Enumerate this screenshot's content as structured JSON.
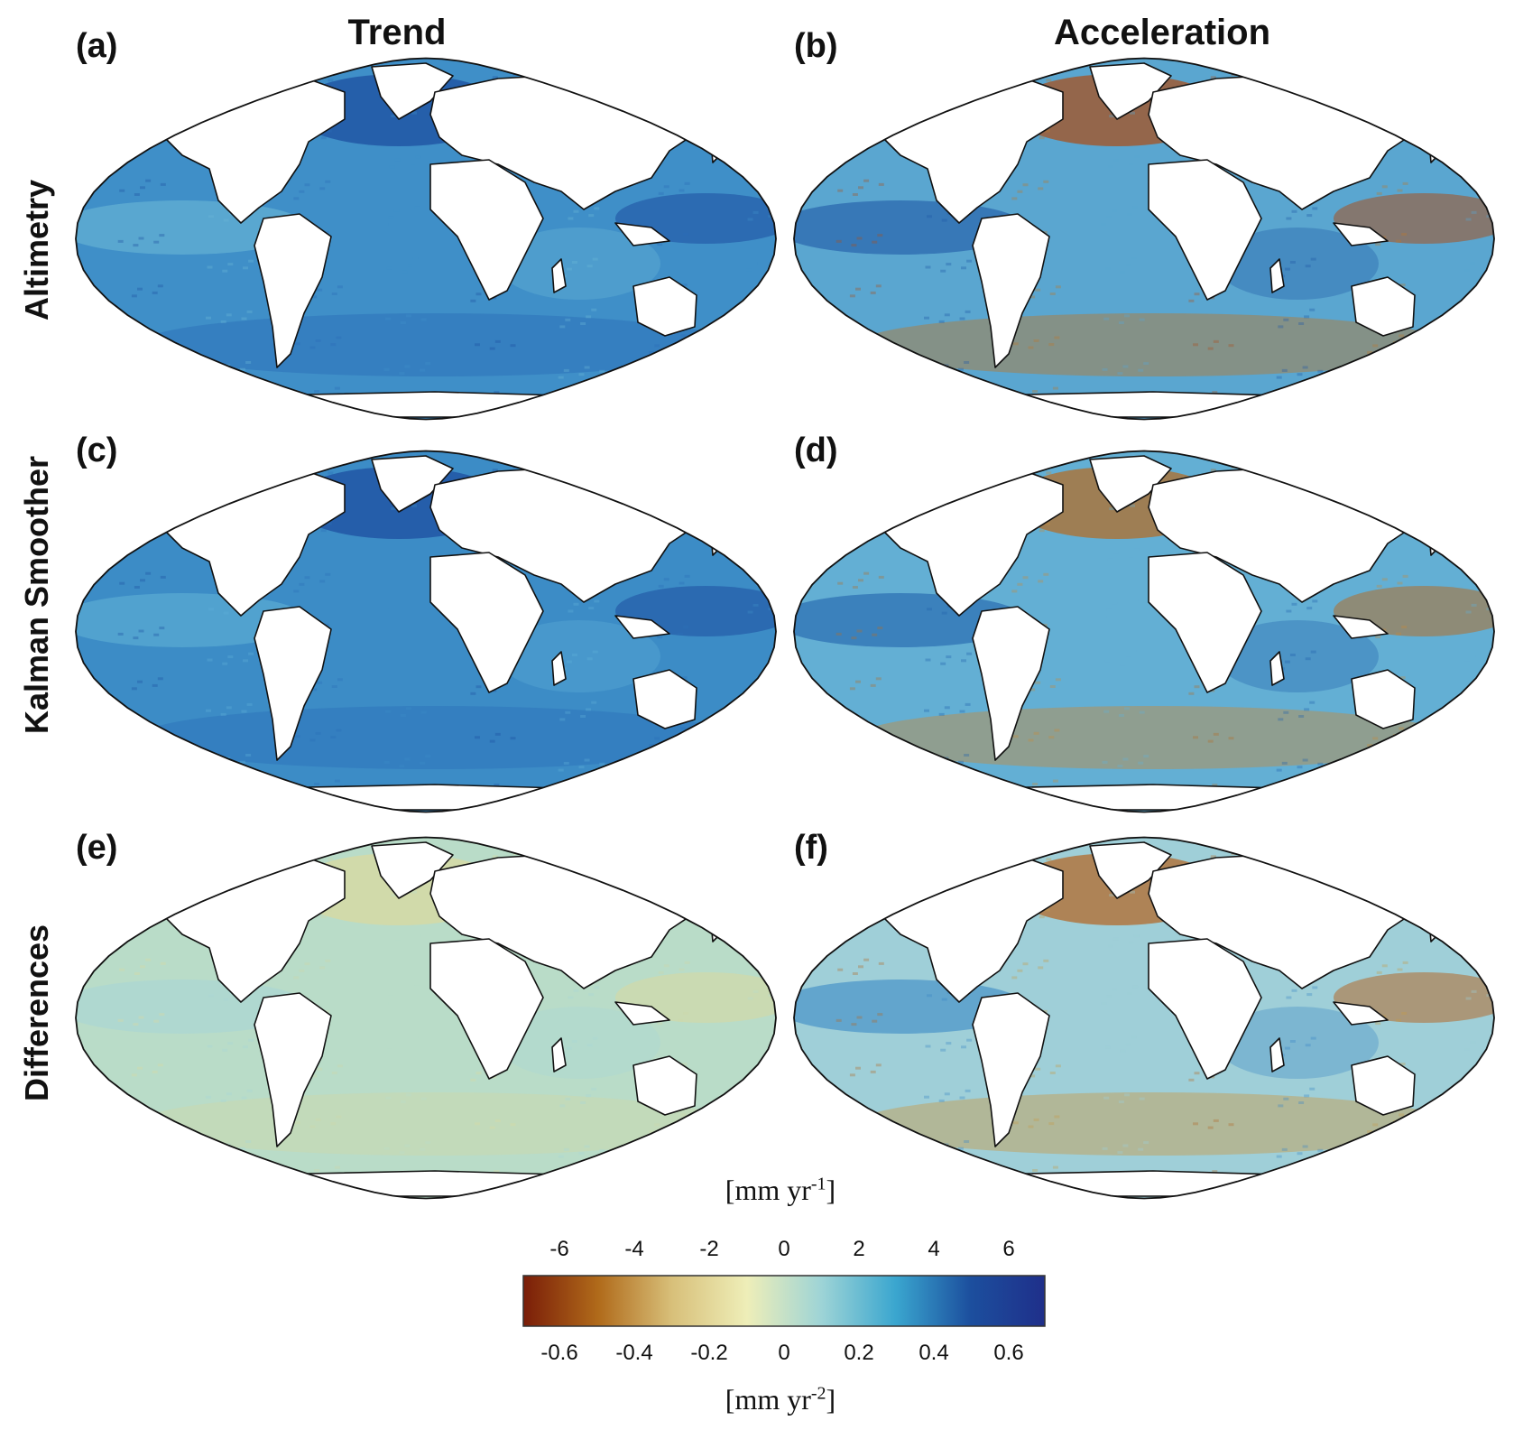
{
  "columns": [
    "Trend",
    "Acceleration"
  ],
  "rows": [
    "Altimetry",
    "Kalman Smoother",
    "Differences"
  ],
  "panels": [
    "(a)",
    "(b)",
    "(c)",
    "(d)",
    "(e)",
    "(f)"
  ],
  "colorbar": {
    "trend_ticks": [
      "-6",
      "-4",
      "-2",
      "0",
      "2",
      "4",
      "6"
    ],
    "accel_ticks": [
      "-0.6",
      "-0.4",
      "-0.2",
      "0",
      "0.2",
      "0.4",
      "0.6"
    ],
    "trend_unit_base": "[mm yr",
    "trend_unit_exp": "-1",
    "trend_unit_close": "]",
    "accel_unit_base": "[mm yr",
    "accel_unit_exp": "-2",
    "accel_unit_close": "]",
    "colors": [
      "#7a1d08",
      "#b06a1a",
      "#d8c07a",
      "#eeeeb8",
      "#9ed4d6",
      "#3aa6cf",
      "#1c4f9e",
      "#1f2f8a"
    ]
  },
  "fields": {
    "a": {
      "base": "#3f8fc8",
      "north_atlantic": "#1d4fa0",
      "tropical": "#6bb8d6",
      "south": "#2a6cb6"
    },
    "b": {
      "base": "#5aa6d0",
      "north_atlantic": "#a8501f",
      "tropical": "#1f5aa6",
      "south": "#b9782e"
    },
    "c": {
      "base": "#3c8cc6",
      "north_atlantic": "#1d4fa0",
      "tropical": "#5fb0d6",
      "south": "#2b6fb8"
    },
    "d": {
      "base": "#63afd4",
      "north_atlantic": "#b26e2a",
      "tropical": "#2162ab",
      "south": "#c58a3d"
    },
    "e": {
      "base": "#b9dcc8",
      "north_atlantic": "#d9d9a0",
      "tropical": "#a8d6d6",
      "south": "#cfd7a8"
    },
    "f": {
      "base": "#9fcfd8",
      "north_atlantic": "#b36a2b",
      "tropical": "#3b88c6",
      "south": "#c79a4b"
    }
  }
}
